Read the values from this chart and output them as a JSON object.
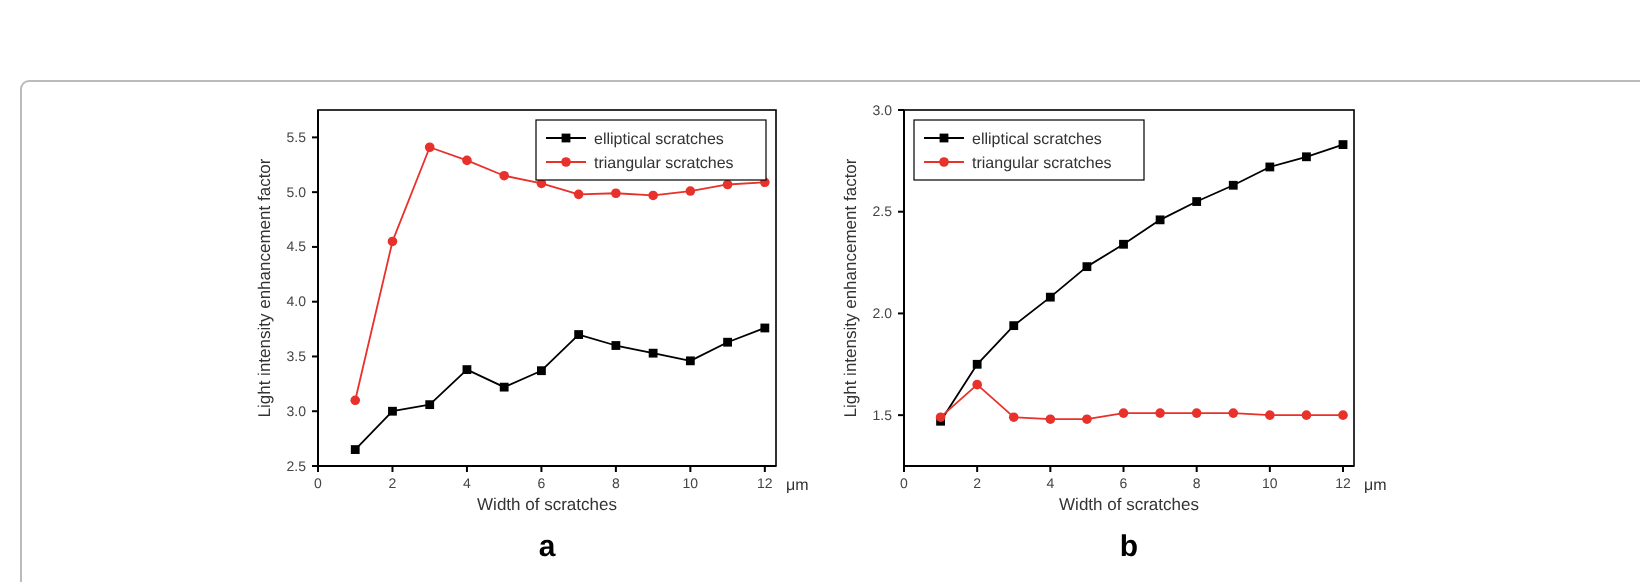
{
  "chart_data": [
    {
      "type": "line",
      "xlabel": "Width of scratches",
      "ylabel": "Light intensity enhancement factor",
      "annotations": [
        "μm",
        "a"
      ],
      "x": [
        1,
        2,
        3,
        4,
        5,
        6,
        7,
        8,
        9,
        10,
        11,
        12
      ],
      "xlim": [
        0,
        12.3
      ],
      "xticks": [
        0,
        2,
        4,
        6,
        8,
        10,
        12
      ],
      "ylim": [
        2.5,
        5.75
      ],
      "yticks": [
        2.5,
        {
          "value": 3,
          "label": "3.0"
        },
        3.5,
        {
          "value": 4,
          "label": "4.0"
        },
        4.5,
        {
          "value": 5,
          "label": "5.0"
        },
        5.5
      ],
      "legend": "top right",
      "series": [
        {
          "name": "elliptical scratches",
          "color": "#000000",
          "marker": "square",
          "values": [
            2.65,
            3.0,
            3.06,
            3.38,
            3.22,
            3.37,
            3.7,
            3.6,
            3.53,
            3.46,
            3.63,
            3.76
          ]
        },
        {
          "name": "triangular scratches",
          "color": "#e8312a",
          "marker": "circle",
          "values": [
            3.1,
            4.55,
            5.41,
            5.29,
            5.15,
            5.08,
            4.98,
            4.99,
            4.97,
            5.01,
            5.07,
            5.09
          ]
        }
      ]
    },
    {
      "type": "line",
      "xlabel": "Width of scratches",
      "ylabel": "Light intensity enhancement factor",
      "annotations": [
        "μm",
        "b"
      ],
      "x": [
        1,
        2,
        3,
        4,
        5,
        6,
        7,
        8,
        9,
        10,
        11,
        12
      ],
      "xlim": [
        0,
        12.3
      ],
      "xticks": [
        0,
        2,
        4,
        6,
        8,
        10,
        12
      ],
      "ylim": [
        1.25,
        3.0
      ],
      "yticks": [
        1.5,
        {
          "value": 2,
          "label": "2.0"
        },
        2.5,
        {
          "value": 3,
          "label": "3.0"
        }
      ],
      "legend": "top left",
      "series": [
        {
          "name": "elliptical scratches",
          "color": "#000000",
          "marker": "square",
          "values": [
            1.47,
            1.75,
            1.94,
            2.08,
            2.23,
            2.34,
            2.46,
            2.55,
            2.63,
            2.72,
            2.77,
            2.83
          ]
        },
        {
          "name": "triangular scratches",
          "color": "#e8312a",
          "marker": "circle",
          "values": [
            1.49,
            1.65,
            1.49,
            1.48,
            1.48,
            1.51,
            1.51,
            1.51,
            1.51,
            1.5,
            1.5,
            1.5
          ]
        }
      ]
    }
  ]
}
